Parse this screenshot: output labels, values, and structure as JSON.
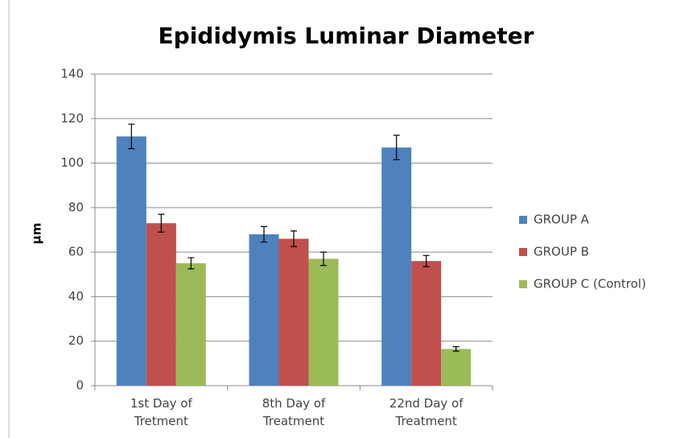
{
  "chart_data": {
    "type": "bar",
    "title": "Epididymis Luminar Diameter",
    "ylabel": "µm",
    "categories": [
      "1st Day of Tretment",
      "8th Day of Treatment",
      "22nd Day of Treatment"
    ],
    "series": [
      {
        "name": "GROUP A",
        "color": "#4f81bd",
        "values": [
          112,
          68,
          107
        ],
        "errors": [
          5.5,
          3.5,
          5.5
        ]
      },
      {
        "name": "GROUP B",
        "color": "#c0504d",
        "values": [
          73,
          66,
          56
        ],
        "errors": [
          4,
          3.5,
          2.5
        ]
      },
      {
        "name": "GROUP C (Control)",
        "color": "#9bbb59",
        "values": [
          55,
          57,
          16.5
        ],
        "errors": [
          2.5,
          3,
          1
        ]
      }
    ],
    "ylim": [
      0,
      140
    ],
    "yticks": [
      0,
      20,
      40,
      60,
      80,
      100,
      120,
      140
    ],
    "grid": true,
    "legend": "right"
  }
}
